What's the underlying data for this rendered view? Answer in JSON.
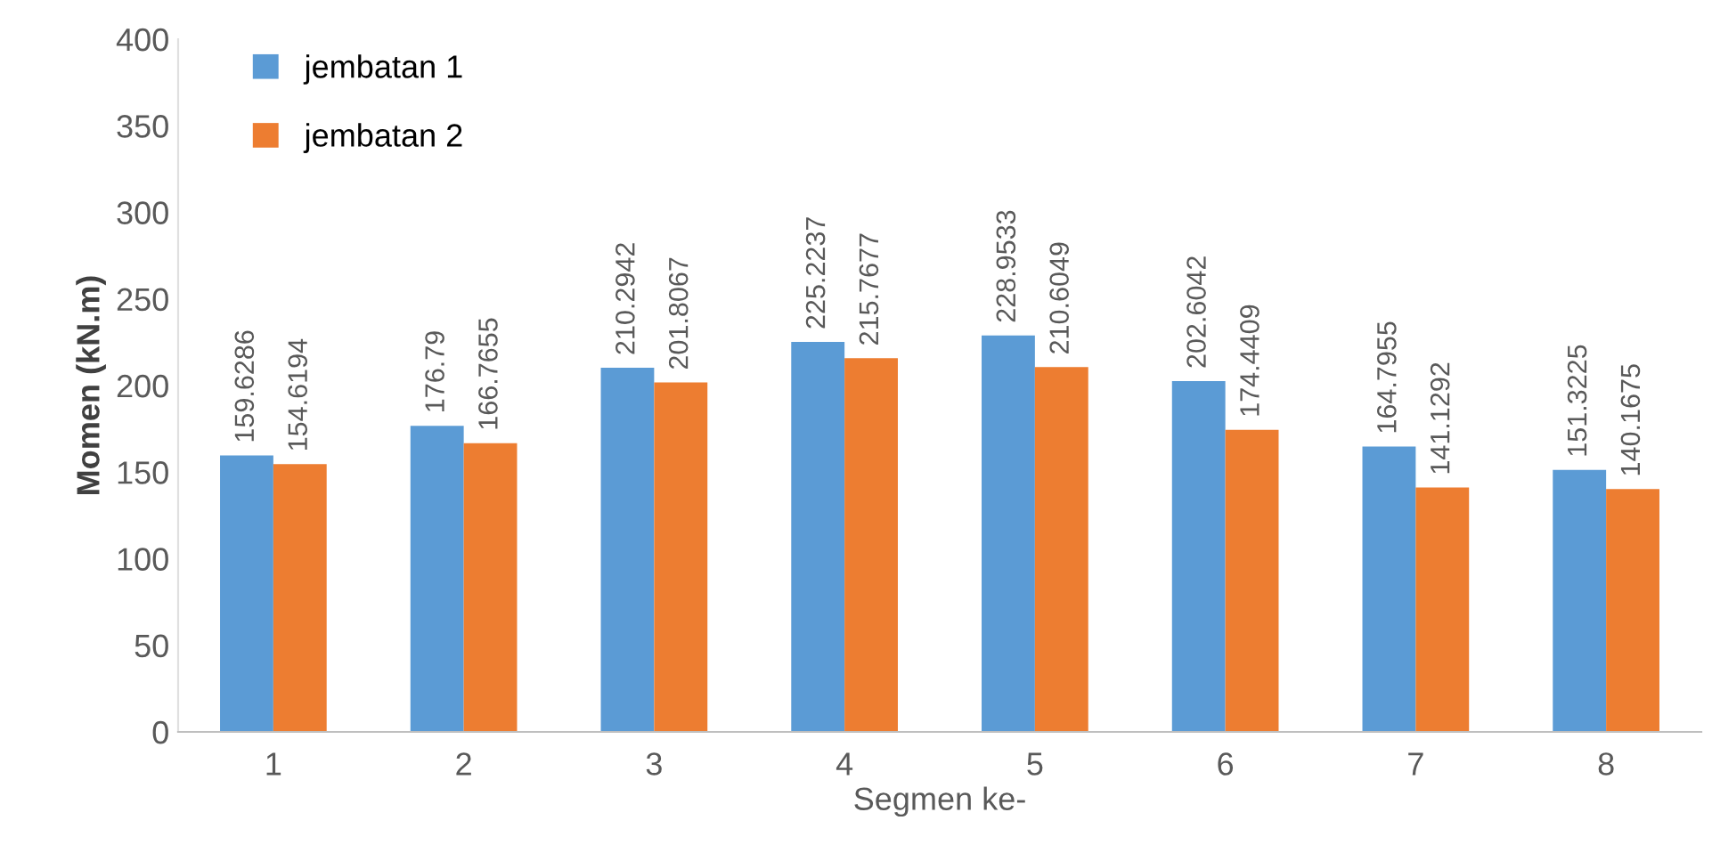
{
  "chart_data": {
    "type": "bar",
    "xlabel": "Segmen ke-",
    "ylabel": "Momen (kN.m)",
    "categories": [
      "1",
      "2",
      "3",
      "4",
      "5",
      "6",
      "7",
      "8"
    ],
    "series": [
      {
        "name": "jembatan 1",
        "color": "#5b9bd5",
        "values": [
          159.6286,
          176.79,
          210.2942,
          225.2237,
          228.9533,
          202.6042,
          164.7955,
          151.3225
        ]
      },
      {
        "name": "jembatan 2",
        "color": "#ed7d31",
        "values": [
          154.6194,
          166.7655,
          201.8067,
          215.7677,
          210.6049,
          174.4409,
          141.1292,
          140.1675
        ]
      }
    ],
    "ylim": [
      0,
      400
    ],
    "yticks": [
      0,
      50,
      100,
      150,
      200,
      250,
      300,
      350,
      400
    ],
    "grid": false,
    "legend": "top left",
    "data_labels": true
  }
}
